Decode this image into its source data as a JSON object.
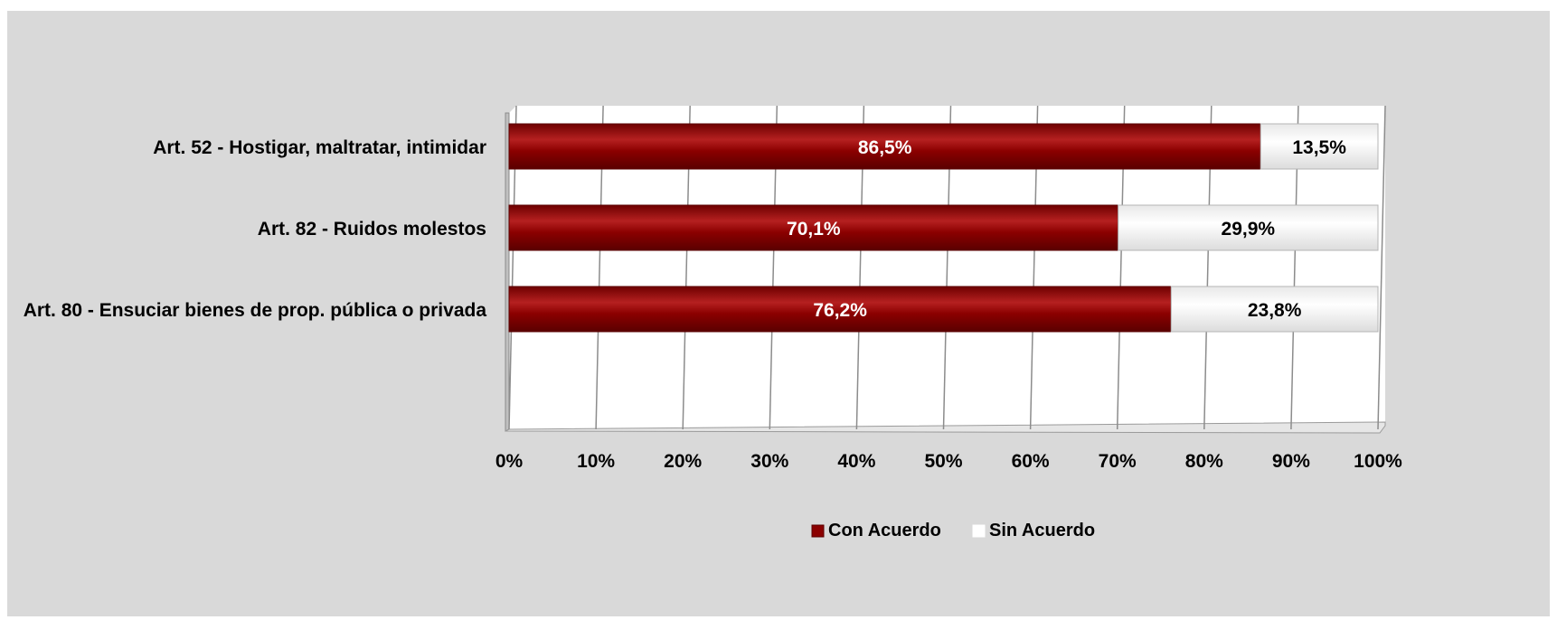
{
  "chart_data": {
    "type": "bar",
    "orientation": "horizontal",
    "stacked": true,
    "percent": true,
    "title": "",
    "xlabel": "",
    "ylabel": "",
    "xlim": [
      0,
      100
    ],
    "grid": true,
    "legend_position": "bottom",
    "categories": [
      "Art. 52 - Hostigar, maltratar, intimidar",
      "Art. 82 - Ruidos molestos",
      "Art. 80 - Ensuciar bienes de prop. pública o privada"
    ],
    "series": [
      {
        "name": "Con Acuerdo",
        "color": "#8b0000",
        "values": [
          86.5,
          70.1,
          76.2
        ],
        "labels": [
          "86,5%",
          "70,1%",
          "76,2%"
        ]
      },
      {
        "name": "Sin Acuerdo",
        "color": "#ffffff",
        "values": [
          13.5,
          29.9,
          23.8
        ],
        "labels": [
          "13,5%",
          "29,9%",
          "23,8%"
        ]
      }
    ],
    "x_tick_labels": [
      "0%",
      "10%",
      "20%",
      "30%",
      "40%",
      "50%",
      "60%",
      "70%",
      "80%",
      "90%",
      "100%"
    ]
  }
}
